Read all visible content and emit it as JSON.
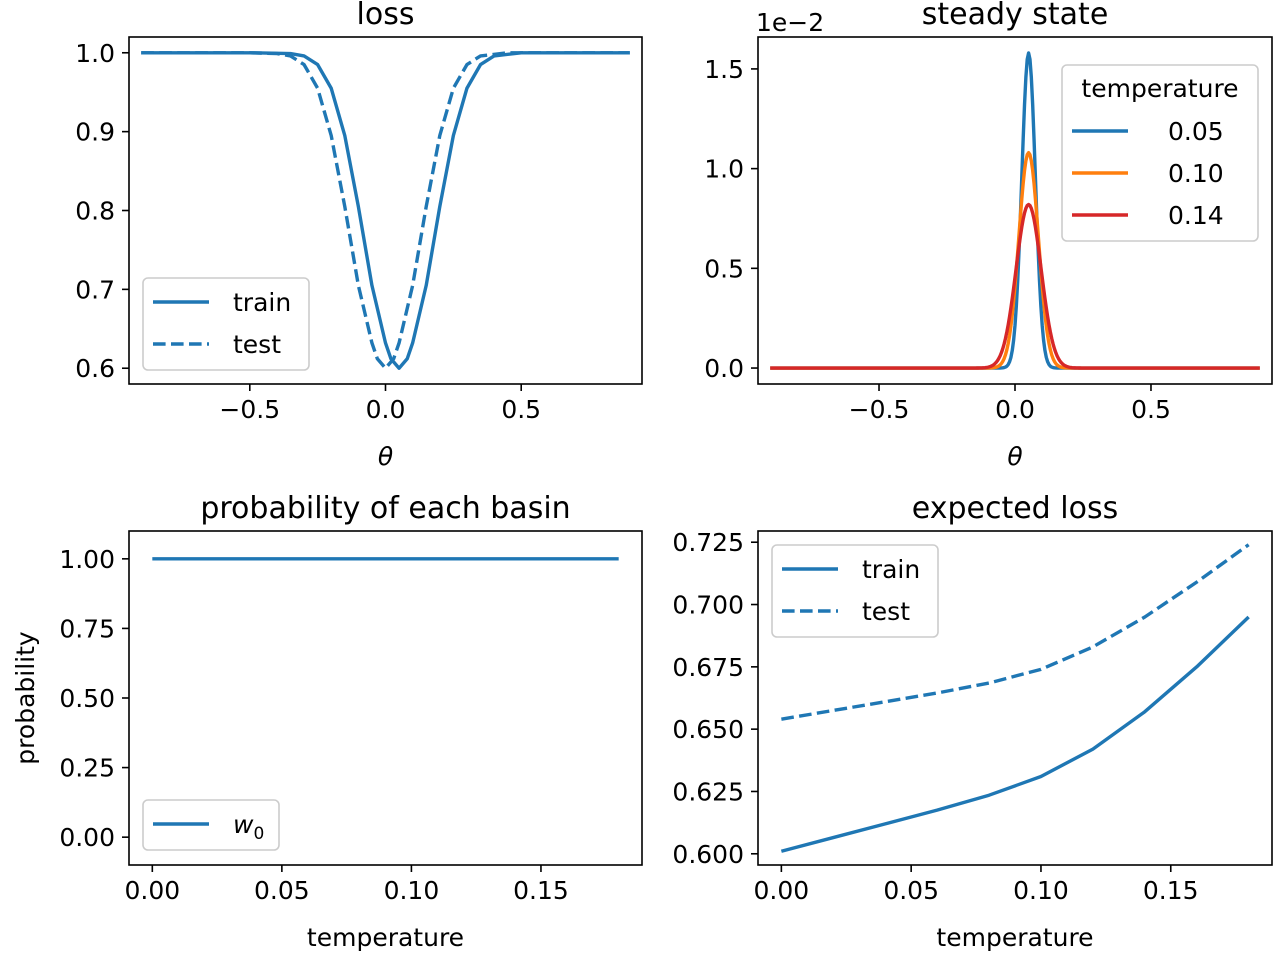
{
  "chart_data": [
    {
      "type": "line",
      "title": "loss",
      "xlabel": "θ",
      "ylabel": "",
      "xlim": [
        -0.945,
        0.945
      ],
      "ylim": [
        0.58,
        1.02
      ],
      "xticks": [
        -0.5,
        0.0,
        0.5
      ],
      "xtick_labels": [
        "−0.5",
        "0.0",
        "0.5"
      ],
      "yticks": [
        0.6,
        0.7,
        0.8,
        0.9,
        1.0
      ],
      "ytick_labels": [
        "0.6",
        "0.7",
        "0.8",
        "0.9",
        "1.0"
      ],
      "legend": {
        "placement": "lower-left",
        "title": ""
      },
      "series": [
        {
          "name": "train",
          "color": "#1f77b4",
          "style": "solid",
          "x": [
            -0.9,
            -0.5,
            -0.35,
            -0.3,
            -0.25,
            -0.2,
            -0.15,
            -0.1,
            -0.05,
            0.0,
            0.02,
            0.05,
            0.08,
            0.1,
            0.15,
            0.2,
            0.25,
            0.3,
            0.35,
            0.4,
            0.5,
            0.9
          ],
          "y": [
            1.0,
            1.0,
            0.999,
            0.996,
            0.985,
            0.955,
            0.895,
            0.805,
            0.705,
            0.632,
            0.612,
            0.6,
            0.612,
            0.632,
            0.705,
            0.805,
            0.895,
            0.955,
            0.985,
            0.996,
            1.0,
            1.0
          ]
        },
        {
          "name": "test",
          "color": "#1f77b4",
          "style": "dashed",
          "x": [
            -0.9,
            -0.5,
            -0.4,
            -0.35,
            -0.3,
            -0.25,
            -0.2,
            -0.15,
            -0.1,
            -0.05,
            -0.03,
            0.0,
            0.03,
            0.05,
            0.1,
            0.15,
            0.2,
            0.25,
            0.3,
            0.35,
            0.45,
            0.9
          ],
          "y": [
            1.0,
            1.0,
            0.999,
            0.996,
            0.985,
            0.955,
            0.895,
            0.805,
            0.705,
            0.632,
            0.612,
            0.6,
            0.612,
            0.632,
            0.705,
            0.805,
            0.895,
            0.955,
            0.985,
            0.996,
            1.0,
            1.0
          ]
        }
      ]
    },
    {
      "type": "line",
      "title": "steady state",
      "xlabel": "θ",
      "ylabel": "",
      "offset_text": "1e−2",
      "xlim": [
        -0.945,
        0.945
      ],
      "ylim": [
        -0.08,
        1.66
      ],
      "xticks": [
        -0.5,
        0.0,
        0.5
      ],
      "xtick_labels": [
        "−0.5",
        "0.0",
        "0.5"
      ],
      "yticks": [
        0.0,
        0.5,
        1.0,
        1.5
      ],
      "ytick_labels": [
        "0.0",
        "0.5",
        "1.0",
        "1.5"
      ],
      "legend": {
        "placement": "upper-right",
        "title": "temperature"
      },
      "gaussian_peak_x": 0.05,
      "series": [
        {
          "name": "0.05",
          "color": "#1f77b4",
          "style": "solid",
          "peak": 1.58,
          "width": 0.025
        },
        {
          "name": "0.10",
          "color": "#ff7f0e",
          "style": "solid",
          "peak": 1.08,
          "width": 0.036
        },
        {
          "name": "0.14",
          "color": "#d62728",
          "style": "solid",
          "peak": 0.82,
          "width": 0.046
        }
      ]
    },
    {
      "type": "line",
      "title": "probability of each basin",
      "xlabel": "temperature",
      "ylabel": "probability",
      "xlim": [
        -0.009,
        0.189
      ],
      "ylim": [
        -0.1,
        1.1
      ],
      "xticks": [
        0.0,
        0.05,
        0.1,
        0.15
      ],
      "xtick_labels": [
        "0.00",
        "0.05",
        "0.10",
        "0.15"
      ],
      "yticks": [
        0.0,
        0.25,
        0.5,
        0.75,
        1.0
      ],
      "ytick_labels": [
        "0.00",
        "0.25",
        "0.50",
        "0.75",
        "1.00"
      ],
      "legend": {
        "placement": "lower-left",
        "title": ""
      },
      "series": [
        {
          "name": "w",
          "name_subscript": "0",
          "color": "#1f77b4",
          "style": "solid",
          "x": [
            0.0,
            0.18
          ],
          "y": [
            1.0,
            1.0
          ]
        }
      ]
    },
    {
      "type": "line",
      "title": "expected loss",
      "xlabel": "temperature",
      "ylabel": "",
      "xlim": [
        -0.009,
        0.189
      ],
      "ylim": [
        0.5955,
        0.7295
      ],
      "xticks": [
        0.0,
        0.05,
        0.1,
        0.15
      ],
      "xtick_labels": [
        "0.00",
        "0.05",
        "0.10",
        "0.15"
      ],
      "yticks": [
        0.6,
        0.625,
        0.65,
        0.675,
        0.7,
        0.725
      ],
      "ytick_labels": [
        "0.600",
        "0.625",
        "0.650",
        "0.675",
        "0.700",
        "0.725"
      ],
      "legend": {
        "placement": "upper-left",
        "title": ""
      },
      "series": [
        {
          "name": "train",
          "color": "#1f77b4",
          "style": "solid",
          "x": [
            0.0,
            0.02,
            0.04,
            0.06,
            0.08,
            0.1,
            0.12,
            0.14,
            0.16,
            0.18
          ],
          "y": [
            0.601,
            0.6065,
            0.612,
            0.6175,
            0.6235,
            0.631,
            0.642,
            0.657,
            0.675,
            0.695
          ]
        },
        {
          "name": "test",
          "color": "#1f77b4",
          "style": "dashed",
          "x": [
            0.0,
            0.02,
            0.04,
            0.06,
            0.08,
            0.1,
            0.12,
            0.14,
            0.16,
            0.18
          ],
          "y": [
            0.654,
            0.6575,
            0.661,
            0.6645,
            0.6685,
            0.674,
            0.683,
            0.695,
            0.709,
            0.724
          ]
        }
      ]
    }
  ]
}
